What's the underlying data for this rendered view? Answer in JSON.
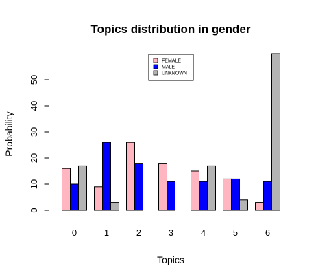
{
  "chart_data": {
    "type": "bar",
    "title": "Topics distribution in gender",
    "xlabel": "Topics",
    "ylabel": "Probability",
    "categories": [
      "0",
      "1",
      "2",
      "3",
      "4",
      "5",
      "6"
    ],
    "series": [
      {
        "name": "FEMALE",
        "color": "#ffb6c1",
        "values": [
          16,
          9,
          26,
          18,
          15,
          12,
          3
        ]
      },
      {
        "name": "MALE",
        "color": "#0000ff",
        "values": [
          10,
          26,
          18,
          11,
          11,
          12,
          11
        ]
      },
      {
        "name": "UNKNOWN",
        "color": "#b3b3b3",
        "values": [
          17,
          3,
          0,
          0,
          17,
          4,
          60
        ]
      }
    ],
    "yticks": [
      0,
      10,
      20,
      30,
      40,
      50
    ],
    "ylim": [
      0,
      60
    ],
    "legend_position": "top-right",
    "grid": false
  }
}
